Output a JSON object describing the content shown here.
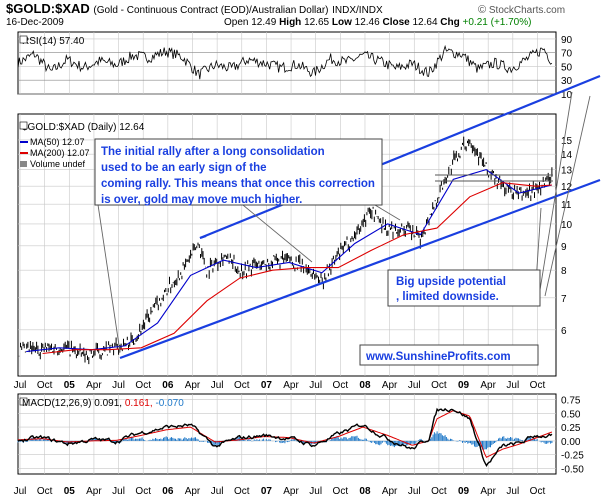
{
  "header": {
    "symbol": "$GOLD:$XAD",
    "description": "(Gold - Continuous Contract (EOD)/Australian Dollar)",
    "exchange": "INDX/INDX",
    "date": "16-Dec-2009",
    "open_label": "Open",
    "open": "12.49",
    "high_label": "High",
    "high": "12.65",
    "low_label": "Low",
    "low": "12.46",
    "close_label": "Close",
    "close": "12.64",
    "chg_label": "Chg",
    "chg": "+0.21 (+1.70%)",
    "brand": "StockCharts.com",
    "brand_symbol": "©"
  },
  "colors": {
    "price": "#000000",
    "ma50": "#0000cc",
    "ma200": "#dd0000",
    "trendline": "#1a3fe0",
    "annotation_text": "#1a3fe0",
    "macd_line": "#000000",
    "macd_signal": "#dd0000",
    "macd_hist": "#1e78c8",
    "grid": "#c8c8c8"
  },
  "chart_data": [
    {
      "type": "line",
      "panel": "RSI",
      "legend": "RSI(14) 57.40",
      "ylim": [
        10,
        100
      ],
      "yticks": [
        90,
        70,
        50,
        30,
        10
      ],
      "series": [
        {
          "name": "RSI(14)",
          "x": [
            "2004-07",
            "2004-09",
            "2004-11",
            "2005-01",
            "2005-03",
            "2005-05",
            "2005-07",
            "2005-09",
            "2005-11",
            "2006-01",
            "2006-03",
            "2006-05",
            "2006-07",
            "2006-09",
            "2006-11",
            "2007-01",
            "2007-03",
            "2007-05",
            "2007-07",
            "2007-09",
            "2007-11",
            "2008-01",
            "2008-03",
            "2008-05",
            "2008-07",
            "2008-09",
            "2008-11",
            "2009-01",
            "2009-03",
            "2009-05",
            "2009-07",
            "2009-09",
            "2009-11",
            "2009-12"
          ],
          "values": [
            55,
            68,
            42,
            60,
            48,
            58,
            52,
            66,
            63,
            72,
            64,
            38,
            52,
            47,
            60,
            55,
            48,
            53,
            40,
            61,
            56,
            66,
            58,
            47,
            54,
            40,
            72,
            68,
            46,
            55,
            47,
            61,
            76,
            57
          ]
        }
      ]
    },
    {
      "type": "line",
      "panel": "Price",
      "legend": [
        "$GOLD:$XAD (Daily) 12.64",
        "MA(50) 12.07",
        "MA(200) 12.07",
        "Volume undef"
      ],
      "ylim": [
        4.8,
        17
      ],
      "yscale": "log",
      "yticks": [
        15,
        14,
        13,
        12,
        11,
        10,
        9,
        8,
        7,
        6
      ],
      "x_ticks": [
        "Jul",
        "Oct",
        "05",
        "Apr",
        "Jul",
        "Oct",
        "06",
        "Apr",
        "Jul",
        "Oct",
        "07",
        "Apr",
        "Jul",
        "Oct",
        "08",
        "Apr",
        "Jul",
        "Oct",
        "09",
        "Apr",
        "Jul",
        "Oct"
      ],
      "series": [
        {
          "name": "$GOLD:$XAD",
          "x": [
            "2004-07",
            "2004-09",
            "2004-11",
            "2005-01",
            "2005-03",
            "2005-05",
            "2005-07",
            "2005-09",
            "2005-11",
            "2006-01",
            "2006-03",
            "2006-05",
            "2006-06",
            "2006-08",
            "2006-10",
            "2006-12",
            "2007-02",
            "2007-04",
            "2007-06",
            "2007-08",
            "2007-10",
            "2007-12",
            "2008-02",
            "2008-04",
            "2008-06",
            "2008-08",
            "2008-10",
            "2008-12",
            "2009-02",
            "2009-04",
            "2009-06",
            "2009-08",
            "2009-10",
            "2009-12"
          ],
          "values": [
            5.4,
            5.45,
            5.5,
            5.5,
            5.3,
            5.4,
            5.5,
            5.7,
            6.4,
            7.2,
            8.0,
            9.1,
            8.0,
            8.6,
            8.0,
            8.2,
            8.3,
            8.4,
            8.1,
            7.6,
            8.6,
            9.5,
            10.7,
            9.7,
            9.8,
            9.3,
            11.3,
            13.5,
            15.1,
            13.0,
            12.0,
            11.5,
            11.8,
            12.64
          ]
        },
        {
          "name": "MA(50)",
          "x": [
            "2004-08",
            "2004-12",
            "2005-04",
            "2005-08",
            "2005-12",
            "2006-04",
            "2006-08",
            "2006-12",
            "2007-04",
            "2007-08",
            "2007-12",
            "2008-04",
            "2008-08",
            "2008-12",
            "2009-04",
            "2009-08",
            "2009-12"
          ],
          "values": [
            5.4,
            5.5,
            5.45,
            5.55,
            6.2,
            7.8,
            8.4,
            8.1,
            8.3,
            7.9,
            9.1,
            10.0,
            9.5,
            12.4,
            13.0,
            11.6,
            12.07
          ]
        },
        {
          "name": "MA(200)",
          "x": [
            "2004-10",
            "2005-02",
            "2005-06",
            "2005-10",
            "2006-02",
            "2006-06",
            "2006-10",
            "2007-02",
            "2007-06",
            "2007-10",
            "2008-02",
            "2008-06",
            "2008-10",
            "2009-02",
            "2009-06",
            "2009-10",
            "2009-12"
          ],
          "values": [
            5.35,
            5.45,
            5.45,
            5.5,
            5.9,
            6.9,
            7.7,
            8.0,
            8.1,
            8.1,
            8.8,
            9.5,
            9.8,
            11.4,
            12.2,
            12.0,
            12.07
          ]
        }
      ],
      "annotations": [
        "The initial rally after a long consolidation used to be an early sign of the coming rally. This means that once this correction is over, gold may move much higher.",
        "Big upside potential, limited downside.",
        "www.SunshineProfits.com"
      ]
    },
    {
      "type": "line",
      "panel": "MACD",
      "legend": [
        "MACD(12,26,9)",
        "0.091",
        "0.161",
        "-0.070"
      ],
      "ylim": [
        -0.6,
        0.85
      ],
      "yticks": [
        0.75,
        0.5,
        0.25,
        0.0,
        -0.25,
        -0.5
      ],
      "x_ticks": [
        "Jul",
        "Oct",
        "05",
        "Apr",
        "Jul",
        "Oct",
        "06",
        "Apr",
        "Jul",
        "Oct",
        "07",
        "Apr",
        "Jul",
        "Oct",
        "08",
        "Apr",
        "Jul",
        "Oct",
        "09",
        "Apr",
        "Jul",
        "Oct"
      ],
      "series": [
        {
          "name": "MACD",
          "x": [
            "2004-07",
            "2004-10",
            "2005-01",
            "2005-04",
            "2005-07",
            "2005-10",
            "2006-01",
            "2006-04",
            "2006-07",
            "2006-10",
            "2007-01",
            "2007-04",
            "2007-07",
            "2007-10",
            "2008-01",
            "2008-04",
            "2008-07",
            "2008-09",
            "2008-10",
            "2008-12",
            "2009-02",
            "2009-04",
            "2009-06",
            "2009-08",
            "2009-10",
            "2009-12"
          ],
          "values": [
            0.02,
            0.05,
            -0.05,
            0.02,
            0.0,
            0.15,
            0.25,
            0.28,
            -0.1,
            0.05,
            0.1,
            0.05,
            -0.08,
            0.12,
            0.3,
            0.05,
            -0.15,
            0.05,
            0.55,
            0.6,
            0.4,
            -0.45,
            -0.1,
            -0.05,
            0.1,
            0.091
          ]
        },
        {
          "name": "Signal",
          "x": [
            "2004-07",
            "2004-10",
            "2005-01",
            "2005-04",
            "2005-07",
            "2005-10",
            "2006-01",
            "2006-04",
            "2006-07",
            "2006-10",
            "2007-01",
            "2007-04",
            "2007-07",
            "2007-10",
            "2008-01",
            "2008-04",
            "2008-07",
            "2008-09",
            "2008-10",
            "2008-12",
            "2009-02",
            "2009-04",
            "2009-06",
            "2009-08",
            "2009-10",
            "2009-12"
          ],
          "values": [
            0.02,
            0.04,
            -0.02,
            0.0,
            0.01,
            0.1,
            0.2,
            0.25,
            -0.02,
            0.02,
            0.08,
            0.06,
            -0.04,
            0.08,
            0.25,
            0.1,
            -0.08,
            0.0,
            0.4,
            0.55,
            0.45,
            -0.3,
            -0.15,
            -0.06,
            0.05,
            0.161
          ]
        }
      ]
    }
  ]
}
